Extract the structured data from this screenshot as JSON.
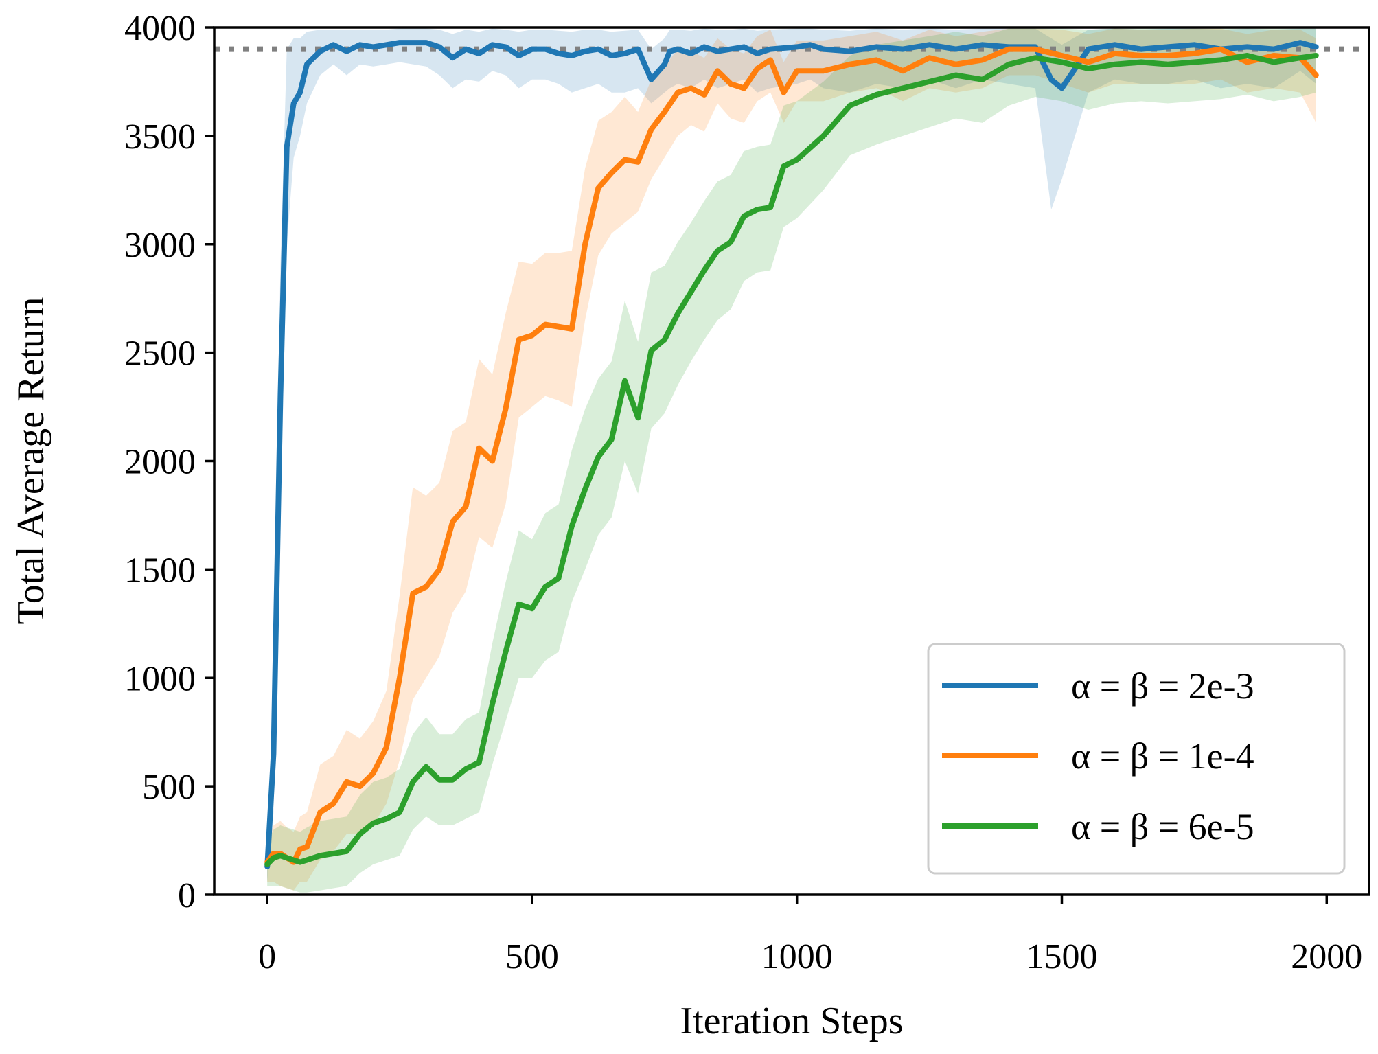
{
  "chart_data": {
    "type": "line",
    "title": "",
    "xlabel": "Iteration Steps",
    "ylabel": "Total Average Return",
    "xlim": [
      -100,
      2080
    ],
    "ylim": [
      0,
      4000
    ],
    "xticks": [
      0,
      500,
      1000,
      1500,
      2000
    ],
    "xtick_labels": [
      "0",
      "500",
      "1000",
      "1500",
      "2000"
    ],
    "yticks": [
      0,
      500,
      1000,
      1500,
      2000,
      2500,
      3000,
      3500,
      4000
    ],
    "ytick_labels": [
      "0",
      "500",
      "1000",
      "1500",
      "2000",
      "2500",
      "3000",
      "3500",
      "4000"
    ],
    "grid": false,
    "legend_position": "lower-right",
    "reference_line": {
      "y": 3900,
      "style": "dotted",
      "color": "#808080"
    },
    "series": [
      {
        "name": "α = β = 2e-3",
        "color": "#1f77b4",
        "x": [
          0,
          12,
          25,
          37,
          50,
          62,
          75,
          100,
          125,
          150,
          175,
          200,
          225,
          250,
          300,
          325,
          350,
          375,
          400,
          425,
          450,
          475,
          500,
          525,
          550,
          575,
          600,
          625,
          650,
          675,
          700,
          725,
          750,
          760,
          775,
          800,
          825,
          850,
          875,
          900,
          925,
          950,
          1000,
          1025,
          1050,
          1100,
          1150,
          1200,
          1250,
          1300,
          1350,
          1400,
          1450,
          1480,
          1500,
          1550,
          1600,
          1650,
          1700,
          1750,
          1800,
          1850,
          1900,
          1950,
          1980
        ],
        "y": [
          130,
          650,
          2300,
          3450,
          3650,
          3700,
          3830,
          3890,
          3920,
          3890,
          3920,
          3910,
          3920,
          3930,
          3930,
          3910,
          3860,
          3900,
          3880,
          3920,
          3910,
          3870,
          3900,
          3900,
          3880,
          3870,
          3890,
          3900,
          3870,
          3880,
          3900,
          3760,
          3830,
          3890,
          3900,
          3880,
          3910,
          3890,
          3900,
          3910,
          3880,
          3900,
          3910,
          3920,
          3900,
          3890,
          3910,
          3900,
          3920,
          3900,
          3920,
          3910,
          3910,
          3760,
          3720,
          3900,
          3920,
          3900,
          3910,
          3920,
          3900,
          3910,
          3900,
          3930,
          3910
        ],
        "band_lower": [
          60,
          380,
          1700,
          3000,
          3400,
          3500,
          3650,
          3780,
          3830,
          3780,
          3830,
          3820,
          3830,
          3840,
          3820,
          3780,
          3720,
          3760,
          3750,
          3800,
          3780,
          3720,
          3760,
          3760,
          3740,
          3700,
          3720,
          3740,
          3700,
          3700,
          3720,
          3650,
          3700,
          3720,
          3740,
          3720,
          3760,
          3720,
          3740,
          3760,
          3700,
          3720,
          3740,
          3760,
          3720,
          3700,
          3740,
          3720,
          3760,
          3720,
          3760,
          3740,
          3720,
          3160,
          3300,
          3700,
          3760,
          3740,
          3740,
          3760,
          3720,
          3740,
          3720,
          3800,
          3740
        ],
        "band_upper": [
          200,
          900,
          2900,
          3900,
          3950,
          3950,
          3980,
          3990,
          3990,
          3990,
          3990,
          3990,
          3990,
          3995,
          3995,
          3990,
          3970,
          3990,
          3980,
          3995,
          3990,
          3980,
          3990,
          3990,
          3985,
          3980,
          3990,
          3990,
          3980,
          3985,
          3990,
          3900,
          3950,
          3990,
          3990,
          3985,
          3995,
          3990,
          3990,
          3995,
          3985,
          3990,
          3995,
          3995,
          3990,
          3985,
          3995,
          3990,
          3995,
          3990,
          3995,
          3995,
          3995,
          3950,
          3920,
          3990,
          3995,
          3990,
          3995,
          3995,
          3990,
          3995,
          3990,
          3995,
          3995
        ]
      },
      {
        "name": "α = β = 1e-4",
        "color": "#ff7f0e",
        "x": [
          0,
          12,
          25,
          37,
          50,
          62,
          75,
          100,
          125,
          150,
          175,
          200,
          225,
          250,
          275,
          300,
          325,
          350,
          375,
          400,
          425,
          450,
          475,
          500,
          525,
          550,
          575,
          600,
          625,
          650,
          675,
          700,
          725,
          750,
          775,
          800,
          825,
          850,
          875,
          900,
          925,
          950,
          975,
          1000,
          1050,
          1100,
          1150,
          1200,
          1250,
          1300,
          1350,
          1400,
          1450,
          1500,
          1550,
          1600,
          1650,
          1700,
          1750,
          1800,
          1850,
          1900,
          1950,
          1980
        ],
        "y": [
          150,
          190,
          190,
          170,
          150,
          210,
          220,
          380,
          420,
          520,
          500,
          560,
          680,
          1000,
          1390,
          1420,
          1500,
          1720,
          1790,
          2060,
          2000,
          2240,
          2560,
          2580,
          2630,
          2620,
          2610,
          3000,
          3260,
          3330,
          3390,
          3380,
          3530,
          3610,
          3700,
          3720,
          3690,
          3800,
          3740,
          3720,
          3810,
          3850,
          3700,
          3800,
          3800,
          3830,
          3850,
          3800,
          3860,
          3830,
          3850,
          3900,
          3900,
          3870,
          3840,
          3880,
          3870,
          3870,
          3880,
          3900,
          3840,
          3870,
          3860,
          3780
        ],
        "band_lower": [
          60,
          60,
          40,
          30,
          20,
          60,
          60,
          160,
          200,
          280,
          280,
          320,
          420,
          620,
          900,
          1000,
          1100,
          1300,
          1400,
          1650,
          1600,
          1800,
          2200,
          2250,
          2300,
          2280,
          2250,
          2650,
          2950,
          3050,
          3100,
          3150,
          3300,
          3400,
          3500,
          3550,
          3520,
          3650,
          3580,
          3560,
          3660,
          3700,
          3560,
          3660,
          3660,
          3700,
          3720,
          3660,
          3720,
          3700,
          3720,
          3780,
          3780,
          3740,
          3700,
          3740,
          3740,
          3740,
          3740,
          3760,
          3700,
          3720,
          3700,
          3560
        ],
        "band_upper": [
          240,
          320,
          340,
          310,
          290,
          360,
          380,
          600,
          640,
          760,
          720,
          800,
          940,
          1380,
          1880,
          1840,
          1900,
          2140,
          2180,
          2470,
          2400,
          2680,
          2920,
          2910,
          2960,
          2960,
          2970,
          3350,
          3570,
          3610,
          3680,
          3610,
          3760,
          3820,
          3900,
          3890,
          3860,
          3950,
          3900,
          3880,
          3960,
          3990,
          3840,
          3940,
          3940,
          3960,
          3980,
          3940,
          3990,
          3960,
          3980,
          3995,
          3995,
          3990,
          3970,
          3995,
          3990,
          3990,
          3995,
          3995,
          3970,
          3990,
          3990,
          3950
        ]
      },
      {
        "name": "α = β = 6e-5",
        "color": "#2ca02c",
        "x": [
          0,
          12,
          25,
          37,
          50,
          62,
          75,
          100,
          125,
          150,
          175,
          200,
          225,
          250,
          275,
          300,
          325,
          350,
          375,
          400,
          425,
          450,
          475,
          500,
          525,
          550,
          575,
          600,
          625,
          650,
          675,
          700,
          725,
          750,
          775,
          800,
          825,
          850,
          875,
          900,
          925,
          950,
          975,
          1000,
          1050,
          1100,
          1150,
          1200,
          1250,
          1300,
          1350,
          1400,
          1450,
          1500,
          1550,
          1600,
          1650,
          1700,
          1750,
          1800,
          1850,
          1900,
          1950,
          1980
        ],
        "y": [
          140,
          170,
          180,
          170,
          160,
          150,
          160,
          180,
          190,
          200,
          280,
          330,
          350,
          380,
          520,
          590,
          530,
          530,
          580,
          610,
          880,
          1120,
          1340,
          1320,
          1420,
          1460,
          1700,
          1870,
          2020,
          2100,
          2370,
          2200,
          2510,
          2560,
          2680,
          2780,
          2880,
          2970,
          3010,
          3130,
          3160,
          3170,
          3360,
          3390,
          3500,
          3640,
          3690,
          3720,
          3750,
          3780,
          3760,
          3830,
          3860,
          3840,
          3810,
          3830,
          3840,
          3830,
          3840,
          3850,
          3870,
          3840,
          3860,
          3870
        ],
        "band_lower": [
          40,
          40,
          40,
          30,
          20,
          10,
          10,
          20,
          30,
          40,
          100,
          140,
          160,
          180,
          300,
          360,
          320,
          320,
          350,
          380,
          600,
          800,
          1000,
          1000,
          1080,
          1120,
          1350,
          1500,
          1660,
          1740,
          2000,
          1850,
          2150,
          2220,
          2350,
          2460,
          2560,
          2650,
          2700,
          2830,
          2870,
          2880,
          3080,
          3120,
          3250,
          3410,
          3460,
          3500,
          3540,
          3580,
          3560,
          3640,
          3680,
          3660,
          3620,
          3650,
          3660,
          3650,
          3660,
          3670,
          3690,
          3660,
          3680,
          3700
        ],
        "band_upper": [
          240,
          300,
          320,
          310,
          300,
          290,
          310,
          340,
          350,
          360,
          460,
          520,
          540,
          580,
          740,
          820,
          740,
          740,
          810,
          840,
          1160,
          1440,
          1680,
          1640,
          1760,
          1800,
          2050,
          2240,
          2380,
          2460,
          2740,
          2550,
          2870,
          2900,
          3010,
          3100,
          3200,
          3290,
          3320,
          3430,
          3450,
          3460,
          3640,
          3660,
          3750,
          3870,
          3920,
          3940,
          3960,
          3980,
          3960,
          3995,
          3995,
          3995,
          3990,
          3995,
          3995,
          3995,
          3995,
          3995,
          3995,
          3995,
          3995,
          3995
        ]
      }
    ]
  }
}
